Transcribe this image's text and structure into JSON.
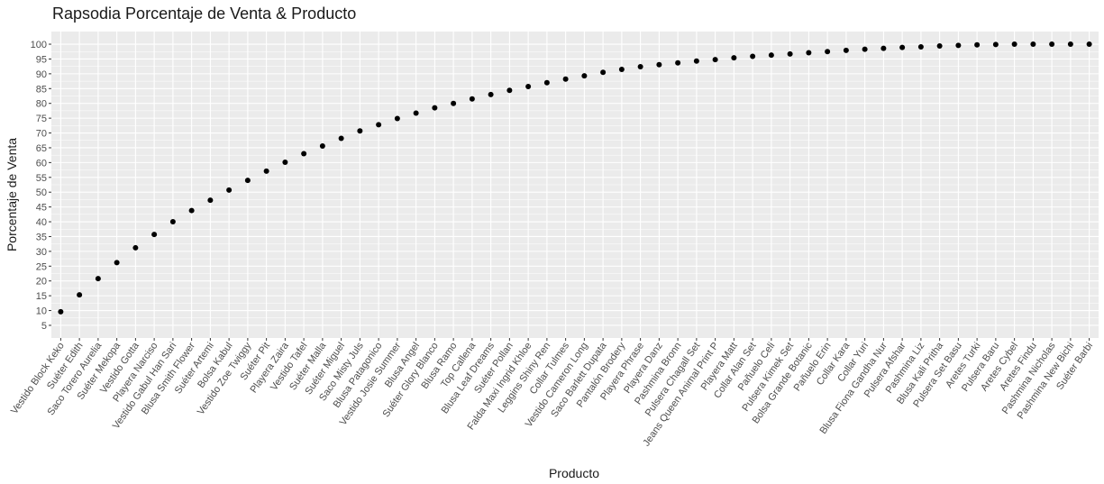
{
  "chart_data": {
    "type": "scatter",
    "title": "Rapsodia Porcentaje de Venta & Producto",
    "xlabel": "Producto",
    "ylabel": "Porcentaje de Venta",
    "ylim": [
      5,
      100
    ],
    "yticks": [
      5,
      10,
      15,
      20,
      25,
      30,
      35,
      40,
      45,
      50,
      55,
      60,
      65,
      70,
      75,
      80,
      85,
      90,
      95,
      100
    ],
    "grid": true,
    "legend": "none",
    "colors": {
      "panel": "#ebebeb",
      "grid": "#ffffff",
      "point": "#000000",
      "text": "#1a1a1a",
      "tick": "#4d4d4d"
    },
    "categories": [
      "Vestido Block Keko",
      "Suéter Edith",
      "Saco Torero Aurelia",
      "Suéter Mekopa",
      "Vestido Gotta",
      "Playera Narciso",
      "Vestido Gabul Han Sari",
      "Blusa Smith Flower",
      "Suéter Artemi",
      "Bolsa Kabul",
      "Vestido Zoe Twiggy",
      "Suéter Pit",
      "Playera Zaira",
      "Vestido Tafel",
      "Suéter Malla",
      "Suéter Miguel",
      "Saco Misty Juls",
      "Blusa Patagonico",
      "Vestido Josie Summer",
      "Blusa Angel",
      "Suéter Glory Blanco",
      "Blusa Ramo",
      "Top Callena",
      "Blusa Leaf Dreams",
      "Suéter Pollan",
      "Falda Maxi Ingrid Khloe",
      "Leggins Shiny Ren",
      "Collar Tulmes",
      "Vestido Cameron Long",
      "Saco Barlett Dupata",
      "Pantalón Brodery",
      "Playera Phrase",
      "Playera Danz",
      "Pashmina Bronn",
      "Pulsera Chagall Set",
      "Jeans Queen Animal Print P",
      "Playera Matt",
      "Collar Alan Set",
      "Pañuelo Celi",
      "Pulsera Kimek Set",
      "Bolsa Grande Botanic",
      "Pañuelo Erin",
      "Collar Kara",
      "Collar Yuri",
      "Blusa Fiona Gandha Nur",
      "Pulsera Afshar",
      "Pashmina Liz",
      "Blusa Kali Pritha",
      "Pulsera Set Basu",
      "Aretes Turki",
      "Pulsera Baru",
      "Aretes Cybel",
      "Aretes Findu",
      "Pashmina Nicholas",
      "Pashmina New Bichi",
      "Suéter Barbi"
    ],
    "values": [
      9.6,
      15.3,
      20.8,
      26.2,
      31.2,
      35.7,
      40.0,
      43.8,
      47.3,
      50.7,
      54.0,
      57.1,
      60.1,
      63.0,
      65.6,
      68.2,
      70.7,
      72.8,
      74.9,
      76.7,
      78.5,
      80.0,
      81.5,
      83.0,
      84.4,
      85.7,
      87.0,
      88.2,
      89.3,
      90.5,
      91.5,
      92.4,
      93.1,
      93.7,
      94.3,
      94.8,
      95.4,
      95.9,
      96.3,
      96.7,
      97.1,
      97.5,
      97.9,
      98.3,
      98.6,
      98.9,
      99.1,
      99.4,
      99.6,
      99.8,
      99.9,
      100.0,
      100.0,
      100.0,
      100.0,
      100.0
    ]
  }
}
